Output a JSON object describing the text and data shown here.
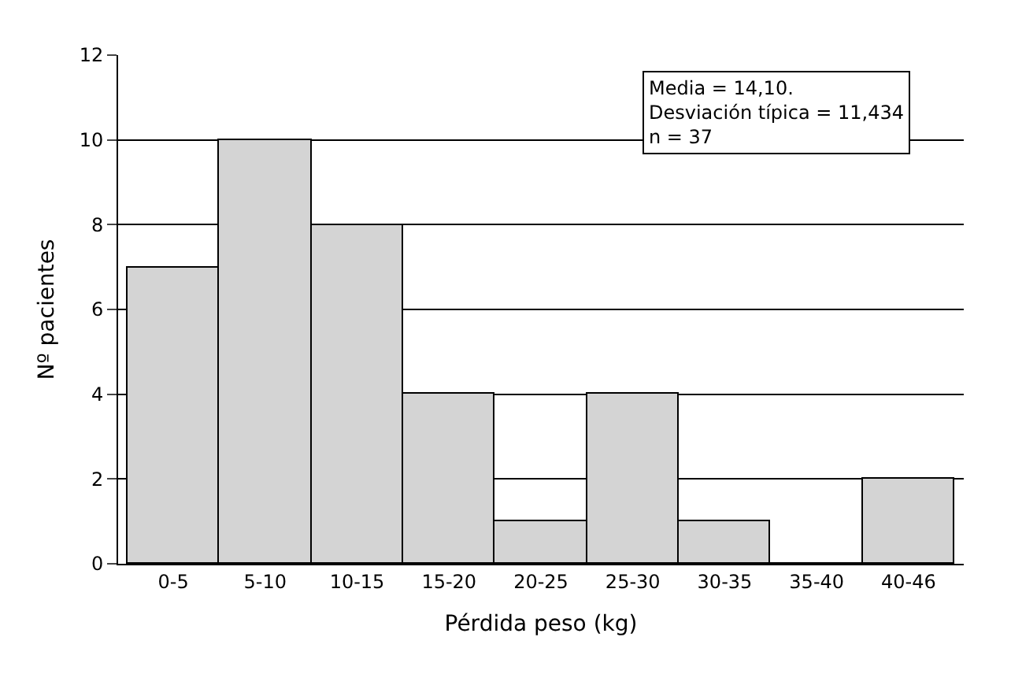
{
  "chart_data": {
    "type": "bar",
    "xlabel": "Pérdida peso (kg)",
    "ylabel": "Nº pacientes",
    "categories": [
      "0-5",
      "5-10",
      "10-15",
      "15-20",
      "20-25",
      "25-30",
      "30-35",
      "35-40",
      "40-46"
    ],
    "values": [
      7,
      10,
      8,
      4,
      1,
      4,
      1,
      0,
      2
    ],
    "color": "#d4d4d4",
    "ylim": [
      0,
      12
    ],
    "yticks": [
      0,
      2,
      4,
      6,
      8,
      10,
      12
    ],
    "grid": "y",
    "annotations": [
      "Media = 14,10.\nDesviación típica = 11,434\nn = 37"
    ]
  }
}
